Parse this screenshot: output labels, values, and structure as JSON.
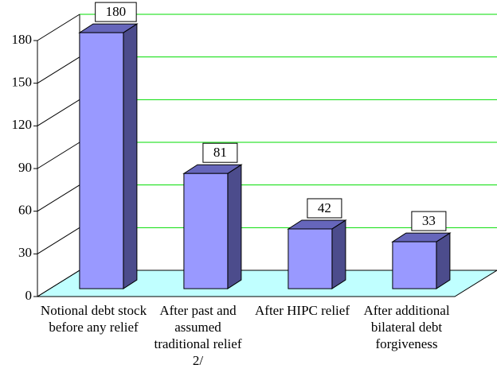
{
  "chart_data": {
    "type": "bar3d",
    "categories": [
      "Notional debt stock before any relief",
      "After past and assumed traditional relief 2/",
      "After HIPC relief",
      "After additional bilateral debt forgiveness"
    ],
    "values": [
      180,
      81,
      42,
      33
    ],
    "color": "#9999ff",
    "ylim": [
      0,
      180
    ],
    "yticks": [
      0,
      30,
      60,
      90,
      120,
      150,
      180
    ],
    "grid": true
  }
}
